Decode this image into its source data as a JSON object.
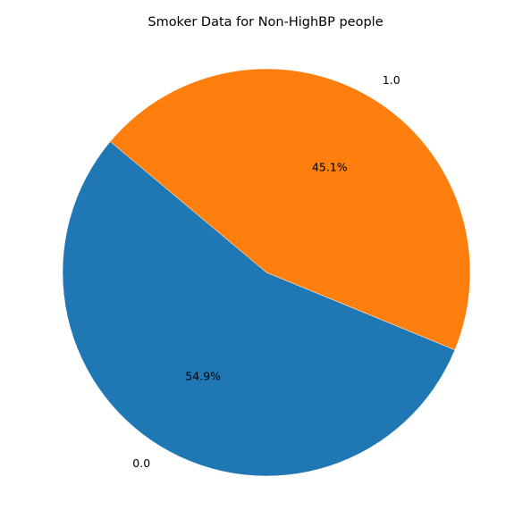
{
  "chart_data": {
    "type": "pie",
    "title": "Smoker Data for Non-HighBP people",
    "categories": [
      "0.0",
      "1.0"
    ],
    "values": [
      54.9,
      45.1
    ],
    "percent_labels": [
      "54.9%",
      "45.1%"
    ],
    "colors": [
      "#1f77b4",
      "#ff7f0e"
    ],
    "start_angle_deg": 140,
    "direction": "counterclockwise",
    "legend": "none"
  }
}
